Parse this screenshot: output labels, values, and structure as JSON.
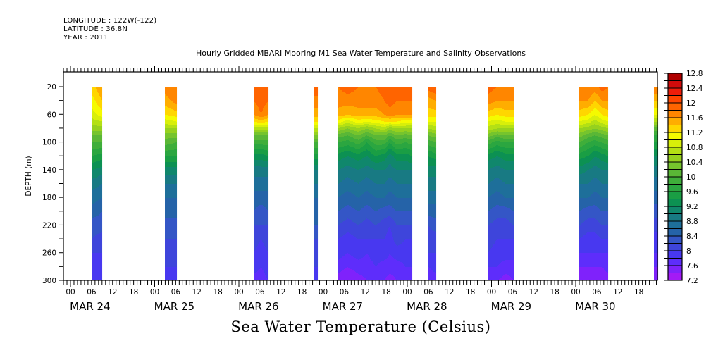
{
  "header": {
    "longitude": "LONGITUDE : 122W(-122)",
    "latitude": "LATITUDE : 36.8N",
    "year": "YEAR : 2011"
  },
  "chart_data": {
    "type": "heatmap",
    "title": "Hourly Gridded MBARI Mooring M1 Sea Water Temperature and Salinity Observations",
    "variable_label": "Sea Water Temperature (Celsius)",
    "ylabel": "DEPTH (m)",
    "xlabel": "",
    "y_axis": {
      "range": [
        300,
        20
      ],
      "inverted": true,
      "tick_labels": [
        "20",
        "60",
        "100",
        "140",
        "180",
        "220",
        "260",
        "300"
      ],
      "tick_values": [
        20,
        60,
        100,
        140,
        180,
        220,
        260,
        300
      ],
      "minor_step": 20,
      "data_top": 20,
      "axis_top": 0
    },
    "x_axis": {
      "start_day_index": 0,
      "hour_tick_labels": [
        "00",
        "06",
        "12",
        "18"
      ],
      "days": [
        "MAR 24",
        "MAR 25",
        "MAR 26",
        "MAR 27",
        "MAR 28",
        "MAR 29",
        "MAR 30"
      ],
      "range_hours": [
        -2.0,
        167.4
      ]
    },
    "colorbar": {
      "levels": [
        7.2,
        7.4,
        7.6,
        7.8,
        8.0,
        8.2,
        8.4,
        8.6,
        8.8,
        9.0,
        9.2,
        9.4,
        9.6,
        9.8,
        10.0,
        10.2,
        10.4,
        10.6,
        10.8,
        11.0,
        11.2,
        11.4,
        11.6,
        11.8,
        12.0,
        12.2,
        12.4,
        12.6,
        12.8
      ],
      "tick_labels": [
        "7.2",
        "7.6",
        "8",
        "8.4",
        "8.8",
        "9.2",
        "9.6",
        "10",
        "10.4",
        "10.8",
        "11.2",
        "11.6",
        "12",
        "12.4",
        "12.8"
      ],
      "colors": [
        "#cc00ff",
        "#a31bf5",
        "#7f22fb",
        "#5e2dfb",
        "#4838f0",
        "#3e45db",
        "#3456c6",
        "#2563a8",
        "#1e6f9a",
        "#187a83",
        "#10876c",
        "#0c9152",
        "#1a9e44",
        "#2ba640",
        "#3fae3a",
        "#5ab736",
        "#76c42d",
        "#96d11e",
        "#b4e014",
        "#d8ef0a",
        "#f5fa00",
        "#ffd600",
        "#ffad00",
        "#ff8600",
        "#ff6400",
        "#ff4500",
        "#ee1d0a",
        "#d10b0b",
        "#b00000",
        "#8c0000"
      ]
    },
    "depths_m": [
      20,
      40,
      60,
      70,
      80,
      90,
      100,
      120,
      140,
      160,
      180,
      200,
      220,
      240,
      260,
      280,
      300
    ],
    "blocks": [
      {
        "start_h": 6.0,
        "end_h": 9.0,
        "profiles": [
          {
            "h": 6.0,
            "temps": [
              11.3,
              11.1,
              10.9,
              10.7,
              10.5,
              10.2,
              10.0,
              9.6,
              9.2,
              8.9,
              8.7,
              8.5,
              8.3,
              8.2,
              8.0,
              7.9,
              7.8
            ]
          },
          {
            "h": 9.0,
            "temps": [
              11.6,
              11.4,
              11.1,
              10.8,
              10.5,
              10.2,
              10.0,
              9.5,
              9.1,
              8.8,
              8.6,
              8.4,
              8.3,
              8.1,
              8.0,
              7.9,
              7.9
            ]
          }
        ]
      },
      {
        "start_h": 27.0,
        "end_h": 30.3,
        "profiles": [
          {
            "h": 27.0,
            "temps": [
              11.7,
              11.5,
              11.2,
              10.9,
              10.6,
              10.3,
              10.1,
              9.6,
              9.1,
              8.8,
              8.6,
              8.5,
              8.3,
              8.2,
              8.1,
              8.0,
              7.9
            ]
          },
          {
            "h": 30.3,
            "temps": [
              11.8,
              11.7,
              11.3,
              11.0,
              10.6,
              10.3,
              10.0,
              9.6,
              9.1,
              8.8,
              8.6,
              8.5,
              8.3,
              8.2,
              8.1,
              8.0,
              8.0
            ]
          }
        ]
      },
      {
        "start_h": 52.2,
        "end_h": 56.4,
        "profiles": [
          {
            "h": 52.2,
            "temps": [
              11.8,
              11.8,
              11.6,
              11.2,
              10.7,
              10.2,
              9.9,
              9.3,
              8.9,
              8.7,
              8.5,
              8.4,
              8.2,
              8.1,
              8.0,
              7.9,
              7.7
            ]
          },
          {
            "h": 54.3,
            "temps": [
              11.9,
              11.9,
              11.8,
              11.3,
              10.7,
              10.2,
              9.9,
              9.3,
              8.9,
              8.7,
              8.5,
              8.3,
              8.2,
              8.0,
              7.9,
              7.8,
              7.7
            ]
          },
          {
            "h": 56.4,
            "temps": [
              11.9,
              11.8,
              11.6,
              11.2,
              10.7,
              10.2,
              9.9,
              9.4,
              8.9,
              8.7,
              8.5,
              8.4,
              8.2,
              8.1,
              8.0,
              7.9,
              7.8
            ]
          }
        ]
      },
      {
        "start_h": 69.3,
        "end_h": 70.5,
        "profiles": [
          {
            "h": 69.3,
            "temps": [
              12.0,
              11.7,
              11.5,
              11.2,
              10.8,
              10.4,
              10.0,
              9.5,
              9.0,
              8.8,
              8.6,
              8.5,
              8.4,
              8.2,
              8.0,
              8.0,
              7.9
            ]
          },
          {
            "h": 70.5,
            "temps": [
              12.0,
              11.7,
              11.5,
              11.2,
              10.8,
              10.4,
              10.0,
              9.5,
              9.0,
              8.8,
              8.6,
              8.5,
              8.4,
              8.2,
              8.0,
              8.0,
              7.9
            ]
          }
        ]
      },
      {
        "start_h": 76.3,
        "end_h": 97.4,
        "profiles": [
          {
            "h": 76.3,
            "temps": [
              11.8,
              11.7,
              11.5,
              11.1,
              10.6,
              10.1,
              9.8,
              9.3,
              9.0,
              8.8,
              8.6,
              8.4,
              8.2,
              8.0,
              7.9,
              7.7,
              7.5
            ]
          },
          {
            "h": 79.0,
            "temps": [
              11.9,
              11.7,
              11.4,
              10.9,
              10.4,
              10.0,
              9.7,
              9.2,
              8.9,
              8.7,
              8.5,
              8.3,
              8.1,
              7.9,
              7.8,
              7.6,
              7.4
            ]
          },
          {
            "h": 82.0,
            "temps": [
              11.8,
              11.7,
              11.5,
              11.1,
              10.6,
              10.2,
              9.9,
              9.3,
              9.0,
              8.8,
              8.6,
              8.4,
              8.2,
              8.0,
              7.9,
              7.7,
              7.5
            ]
          },
          {
            "h": 84.5,
            "temps": [
              11.8,
              11.7,
              11.5,
              11.0,
              10.4,
              10.0,
              9.6,
              9.2,
              8.9,
              8.7,
              8.5,
              8.3,
              8.1,
              8.0,
              7.8,
              7.7,
              7.6
            ]
          },
          {
            "h": 87.0,
            "temps": [
              11.8,
              11.7,
              11.5,
              11.1,
              10.6,
              10.2,
              9.9,
              9.4,
              9.0,
              8.8,
              8.6,
              8.4,
              8.2,
              8.0,
              7.9,
              7.8,
              7.6
            ]
          },
          {
            "h": 89.5,
            "temps": [
              11.9,
              11.8,
              11.6,
              11.2,
              10.7,
              10.2,
              9.9,
              9.3,
              9.0,
              8.8,
              8.6,
              8.3,
              8.1,
              8.0,
              7.9,
              7.7,
              7.6
            ]
          },
          {
            "h": 91.0,
            "temps": [
              12.0,
              11.9,
              11.7,
              11.2,
              10.5,
              10.0,
              9.6,
              9.1,
              8.9,
              8.7,
              8.5,
              8.3,
              8.0,
              7.9,
              7.8,
              7.7,
              7.5
            ]
          },
          {
            "h": 93.0,
            "temps": [
              11.9,
              11.8,
              11.6,
              11.2,
              10.6,
              10.2,
              9.9,
              9.3,
              9.0,
              8.8,
              8.6,
              8.4,
              8.2,
              8.1,
              7.9,
              7.7,
              7.6
            ]
          },
          {
            "h": 95.5,
            "temps": [
              11.9,
              11.8,
              11.6,
              11.1,
              10.6,
              10.1,
              9.8,
              9.3,
              9.0,
              8.8,
              8.6,
              8.4,
              8.2,
              8.0,
              7.9,
              7.8,
              7.7
            ]
          },
          {
            "h": 97.4,
            "temps": [
              11.9,
              11.8,
              11.6,
              11.1,
              10.6,
              10.2,
              9.9,
              9.4,
              9.0,
              8.8,
              8.6,
              8.4,
              8.2,
              8.0,
              7.9,
              7.8,
              7.7
            ]
          }
        ]
      },
      {
        "start_h": 102.0,
        "end_h": 104.2,
        "profiles": [
          {
            "h": 102.0,
            "temps": [
              11.9,
              11.5,
              11.3,
              11.0,
              10.6,
              10.2,
              9.9,
              9.4,
              9.1,
              8.9,
              8.7,
              8.5,
              8.2,
              8.1,
              8.0,
              7.8,
              7.6
            ]
          },
          {
            "h": 104.2,
            "temps": [
              12.0,
              11.6,
              11.3,
              11.0,
              10.7,
              10.3,
              10.0,
              9.5,
              9.1,
              8.9,
              8.7,
              8.5,
              8.3,
              8.1,
              8.0,
              7.9,
              7.7
            ]
          }
        ]
      },
      {
        "start_h": 119.0,
        "end_h": 126.3,
        "profiles": [
          {
            "h": 119.0,
            "temps": [
              11.9,
              11.7,
              11.3,
              11.0,
              10.7,
              10.3,
              9.9,
              9.3,
              9.0,
              8.8,
              8.6,
              8.4,
              8.2,
              8.1,
              8.0,
              7.8,
              7.6
            ]
          },
          {
            "h": 121.5,
            "temps": [
              11.8,
              11.6,
              11.2,
              10.9,
              10.6,
              10.1,
              9.7,
              9.2,
              8.9,
              8.7,
              8.5,
              8.3,
              8.1,
              8.0,
              7.9,
              7.8,
              7.6
            ]
          },
          {
            "h": 124.0,
            "temps": [
              11.8,
              11.6,
              11.3,
              11.0,
              10.6,
              10.2,
              9.8,
              9.3,
              9.0,
              8.8,
              8.6,
              8.3,
              8.1,
              8.0,
              7.9,
              7.7,
              7.5
            ]
          },
          {
            "h": 126.3,
            "temps": [
              11.8,
              11.6,
              11.3,
              11.0,
              10.6,
              10.2,
              9.8,
              9.3,
              9.0,
              8.8,
              8.6,
              8.4,
              8.2,
              8.0,
              7.9,
              7.7,
              7.6
            ]
          }
        ]
      },
      {
        "start_h": 145.0,
        "end_h": 153.3,
        "profiles": [
          {
            "h": 145.0,
            "temps": [
              11.8,
              11.6,
              11.3,
              11.0,
              10.6,
              10.3,
              10.0,
              9.5,
              9.1,
              8.8,
              8.6,
              8.4,
              8.2,
              8.0,
              7.8,
              7.6,
              7.4
            ]
          },
          {
            "h": 147.5,
            "temps": [
              11.8,
              11.6,
              11.2,
              10.9,
              10.5,
              10.1,
              9.8,
              9.4,
              9.0,
              8.8,
              8.6,
              8.3,
              8.1,
              7.9,
              7.8,
              7.6,
              7.4
            ]
          },
          {
            "h": 149.5,
            "temps": [
              11.7,
              11.4,
              11.0,
              10.7,
              10.4,
              10.0,
              9.7,
              9.2,
              8.9,
              8.7,
              8.5,
              8.3,
              8.1,
              7.9,
              7.8,
              7.6,
              7.5
            ]
          },
          {
            "h": 151.5,
            "temps": [
              11.9,
              11.6,
              11.2,
              10.9,
              10.5,
              10.1,
              9.8,
              9.3,
              9.0,
              8.8,
              8.6,
              8.4,
              8.2,
              8.0,
              7.8,
              7.6,
              7.4
            ]
          },
          {
            "h": 153.3,
            "temps": [
              11.8,
              11.6,
              11.3,
              11.0,
              10.6,
              10.2,
              9.9,
              9.4,
              9.0,
              8.8,
              8.6,
              8.4,
              8.2,
              8.0,
              7.8,
              7.7,
              7.5
            ]
          }
        ]
      },
      {
        "start_h": 166.2,
        "end_h": 167.4,
        "profiles": [
          {
            "h": 166.2,
            "temps": [
              11.8,
              11.4,
              11.0,
              10.6,
              10.1,
              9.8,
              9.6,
              9.2,
              8.9,
              8.7,
              8.5,
              8.3,
              8.1,
              7.9,
              7.8,
              7.6,
              7.4
            ]
          },
          {
            "h": 167.4,
            "temps": [
              11.8,
              11.4,
              11.0,
              10.6,
              10.1,
              9.8,
              9.6,
              9.2,
              8.9,
              8.7,
              8.5,
              8.3,
              8.1,
              7.9,
              7.8,
              7.6,
              7.4
            ]
          }
        ]
      }
    ]
  }
}
